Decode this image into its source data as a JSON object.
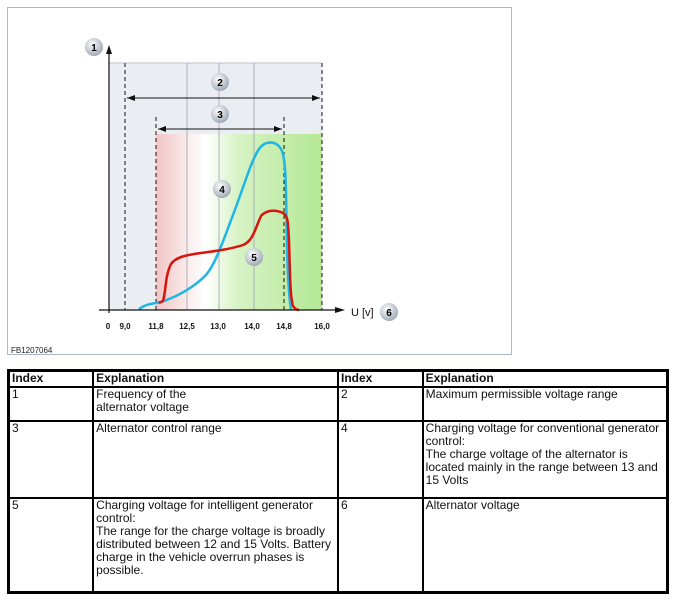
{
  "figure": {
    "code": "FB1207064",
    "axis_x_label": "U [v]",
    "x_ticks": [
      "0",
      "9,0",
      "11,8",
      "12,5",
      "13,0",
      "14,0",
      "14,8",
      "16,0"
    ],
    "callouts": [
      "1",
      "2",
      "3",
      "4",
      "5",
      "6"
    ],
    "colors": {
      "conventional_curve": "#1fb6e6",
      "intelligent_curve": "#d8140e",
      "range_bg": "#eaeef3",
      "control_green": "#b8e89a",
      "control_red": "#f2c8c8"
    }
  },
  "table": {
    "headers": [
      "Index",
      "Explanation",
      "Index",
      "Explanation"
    ],
    "rows": [
      [
        "1",
        "Frequency of the\nalternator voltage",
        "2",
        "Maximum permissible voltage range"
      ],
      [
        "3",
        "Alternator control range",
        "4",
        "Charging voltage for conventional generator control:\nThe charge voltage of the alternator is located mainly in the range between 13 and 15 Volts"
      ],
      [
        "5",
        "Charging voltage for intelligent generator control:\nThe range for the charge voltage is broadly distributed between 12 and 15 Volts. Battery charge in the vehicle overrun phases is possible.",
        "6",
        "Alternator voltage"
      ]
    ]
  }
}
